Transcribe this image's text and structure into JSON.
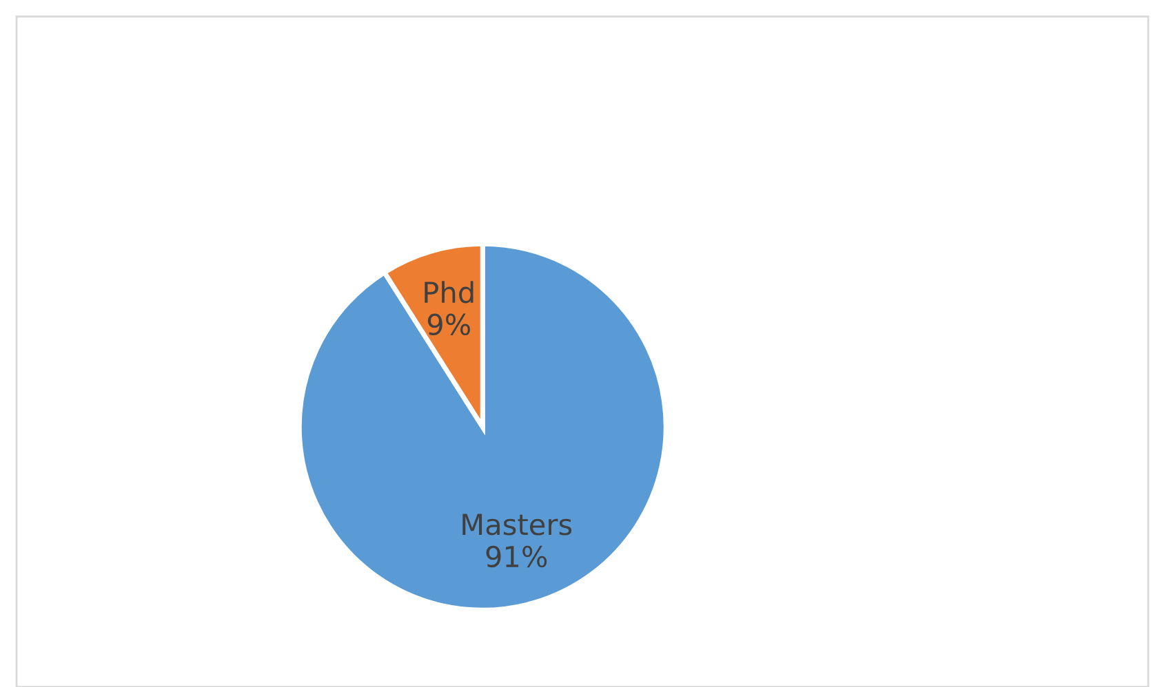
{
  "chart_data": {
    "type": "pie",
    "categories": [
      "Masters",
      "Phd"
    ],
    "values": [
      91,
      9
    ],
    "colors": [
      "#5b9bd5",
      "#ed7d31"
    ],
    "value_labels": [
      "91%",
      "9%"
    ],
    "legend": false
  }
}
